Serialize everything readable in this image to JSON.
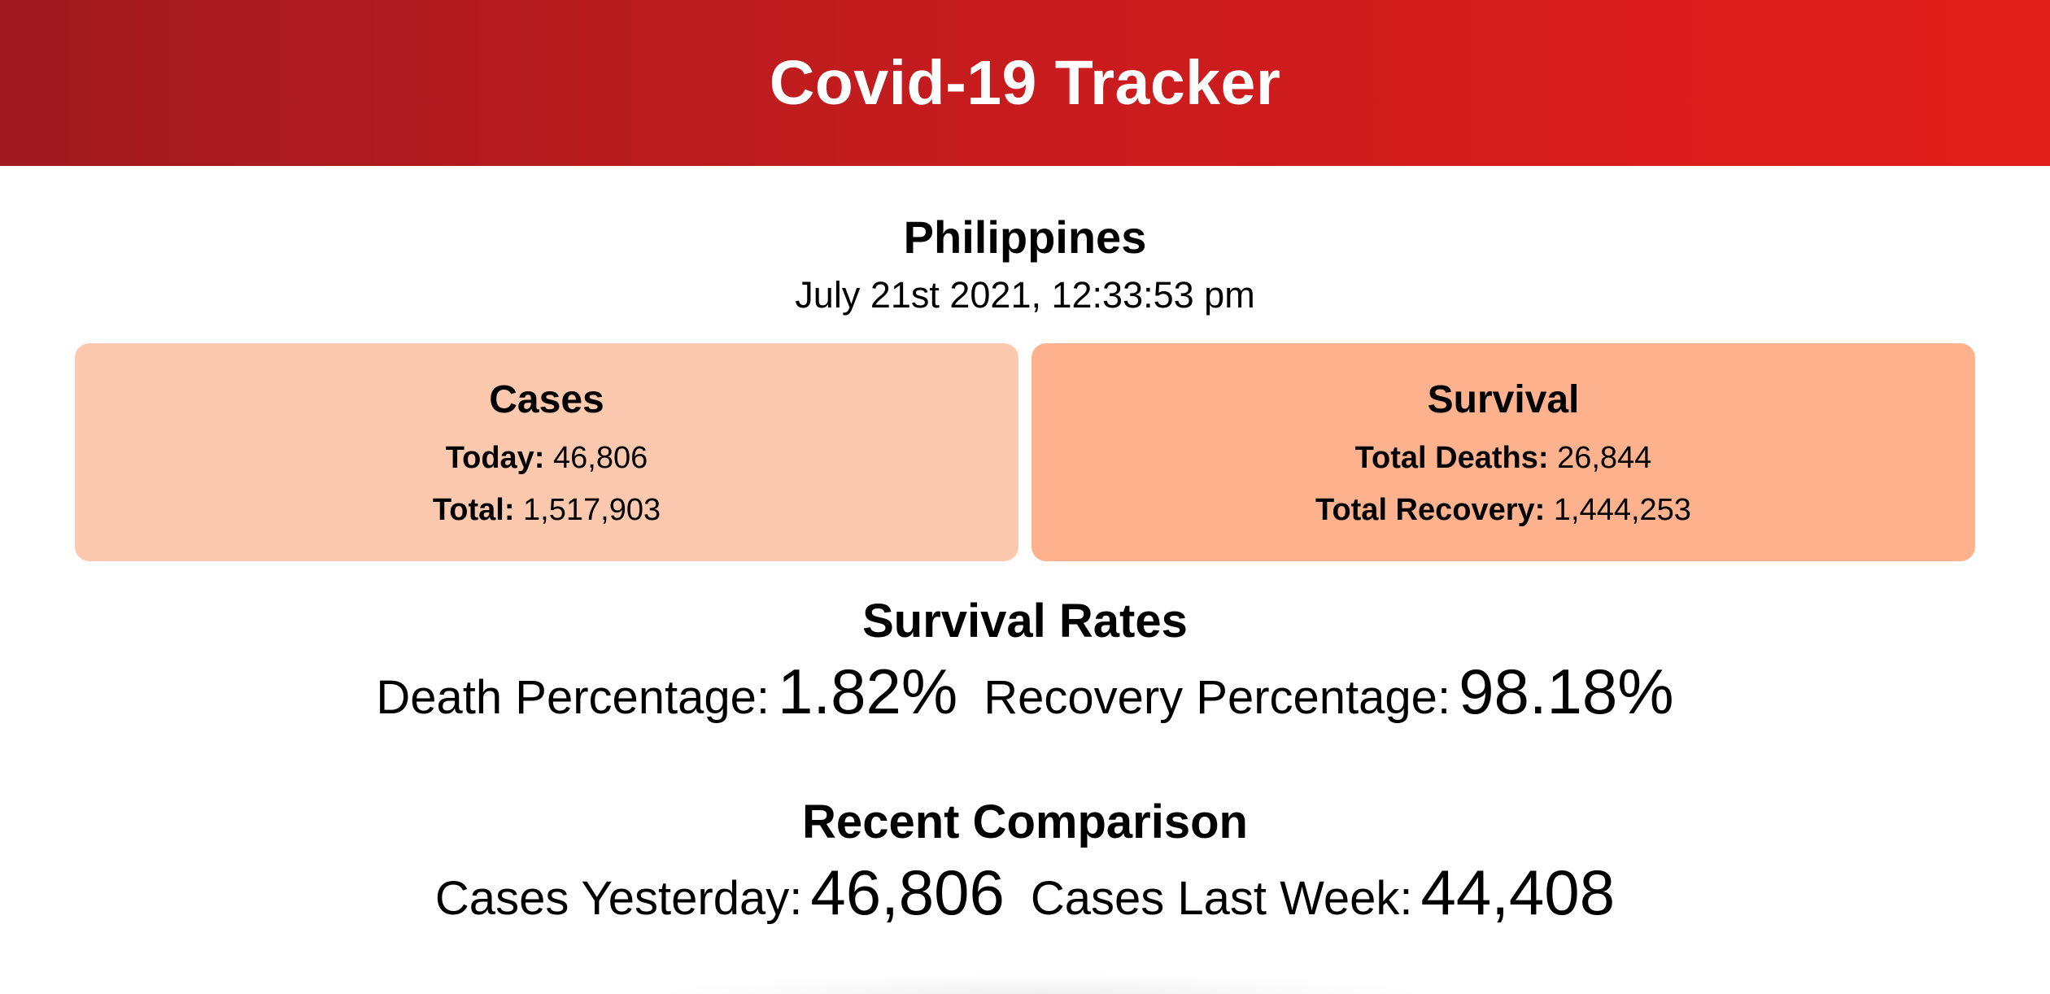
{
  "header": {
    "title": "Covid-19 Tracker"
  },
  "location": {
    "country": "Philippines",
    "datetime": "July 21st 2021, 12:33:53 pm"
  },
  "cases_card": {
    "title": "Cases",
    "today_label": "Today:",
    "today_value": "46,806",
    "total_label": "Total:",
    "total_value": "1,517,903"
  },
  "survival_card": {
    "title": "Survival",
    "deaths_label": "Total Deaths:",
    "deaths_value": "26,844",
    "recovery_label": "Total Recovery:",
    "recovery_value": "1,444,253"
  },
  "survival_rates": {
    "title": "Survival Rates",
    "death_label": "Death Percentage:",
    "death_value": "1.82%",
    "recovery_label": "Recovery Percentage:",
    "recovery_value": "98.18%"
  },
  "recent_comparison": {
    "title": "Recent Comparison",
    "yesterday_label": "Cases Yesterday:",
    "yesterday_value": "46,806",
    "last_week_label": "Cases Last Week:",
    "last_week_value": "44,408"
  },
  "colors": {
    "header_gradient_start": "#a01a1f",
    "header_gradient_end": "#e21e1a",
    "cases_card_bg": "#fdc9ae",
    "survival_card_bg": "#fdb18c"
  }
}
